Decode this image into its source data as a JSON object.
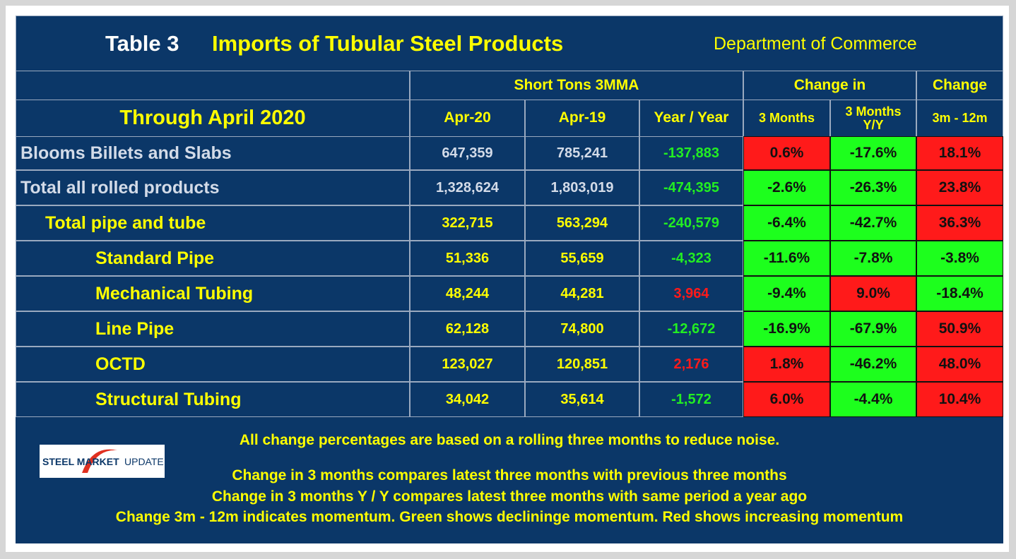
{
  "header": {
    "table_no": "Table 3",
    "title": "Imports of Tubular Steel Products",
    "source": "Department of Commerce"
  },
  "table": {
    "period": "Through April 2020",
    "group_headers": [
      "Short Tons 3MMA",
      "Change in",
      "Change"
    ],
    "columns": [
      "Apr-20",
      "Apr-19",
      "Year / Year",
      "3 Months",
      "3 Months Y/Y",
      "3m - 12m"
    ],
    "rows": [
      [
        "Blooms Billets and Slabs",
        "647,359",
        "785,241",
        "-137,883",
        "0.6%",
        "-17.6%",
        "18.1%"
      ],
      [
        "Total all rolled products",
        "1,328,624",
        "1,803,019",
        "-474,395",
        "-2.6%",
        "-26.3%",
        "23.8%"
      ],
      [
        "Total pipe and tube",
        "322,715",
        "563,294",
        "-240,579",
        "-6.4%",
        "-42.7%",
        "36.3%"
      ],
      [
        "Standard Pipe",
        "51,336",
        "55,659",
        "-4,323",
        "-11.6%",
        "-7.8%",
        "-3.8%"
      ],
      [
        "Mechanical Tubing",
        "48,244",
        "44,281",
        "3,964",
        "-9.4%",
        "9.0%",
        "-18.4%"
      ],
      [
        "Line Pipe",
        "62,128",
        "74,800",
        "-12,672",
        "-16.9%",
        "-67.9%",
        "50.9%"
      ],
      [
        "OCTD",
        "123,027",
        "120,851",
        "2,176",
        "1.8%",
        "-46.2%",
        "48.0%"
      ],
      [
        "Structural Tubing",
        "34,042",
        "35,614",
        "-1,572",
        "6.0%",
        "-4.4%",
        "10.4%"
      ]
    ],
    "yoy_colors": [
      "green",
      "green",
      "green",
      "green",
      "red",
      "green",
      "red",
      "green"
    ],
    "change_colors": [
      [
        "red",
        "green",
        "red"
      ],
      [
        "green",
        "green",
        "red"
      ],
      [
        "green",
        "green",
        "red"
      ],
      [
        "green",
        "green",
        "green"
      ],
      [
        "green",
        "red",
        "green"
      ],
      [
        "green",
        "green",
        "red"
      ],
      [
        "red",
        "green",
        "red"
      ],
      [
        "red",
        "green",
        "red"
      ]
    ]
  },
  "logo": {
    "brand": "STEEL MARKET",
    "suffix": "UPDATE"
  },
  "notes": [
    "All change percentages are based on a rolling three months to reduce noise.",
    "Change in 3 months compares latest three months with previous three months",
    "Change in 3 months  Y / Y compares latest three months with same period a year ago",
    "Change 3m - 12m indicates momentum. Green shows declininge momentum. Red shows increasing momentum"
  ]
}
